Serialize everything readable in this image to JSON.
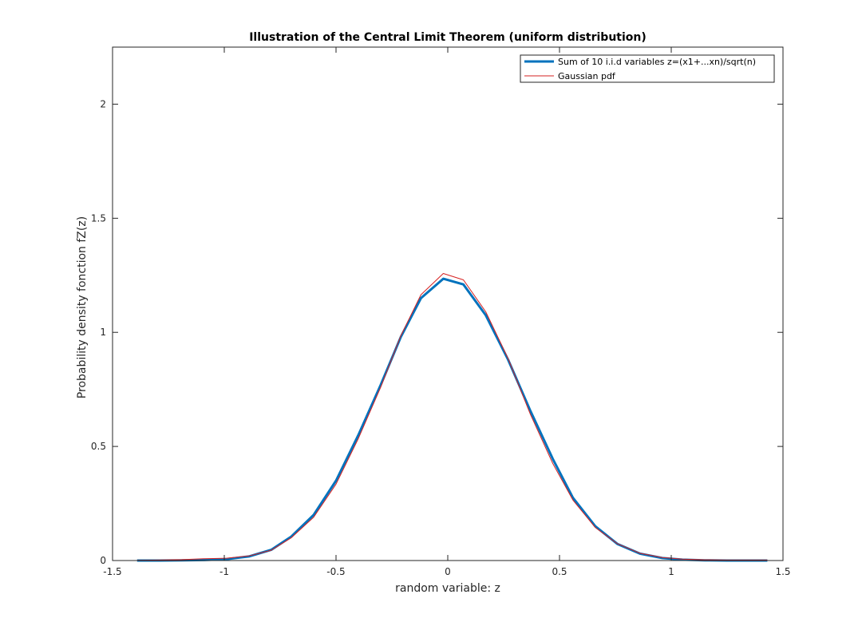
{
  "chart_data": {
    "type": "line",
    "title": "Illustration of the Central Limit Theorem (uniform distribution)",
    "xlabel": "random variable: z",
    "ylabel": "Probability density fonction fZ(z)",
    "xlim": [
      -1.5,
      1.5
    ],
    "ylim": [
      0,
      2.25
    ],
    "xticks": [
      -1.5,
      -1,
      -0.5,
      0,
      0.5,
      1,
      1.5
    ],
    "xtick_labels": [
      "-1.5",
      "-1",
      "-0.5",
      "0",
      "0.5",
      "1",
      "1.5"
    ],
    "yticks": [
      0,
      0.5,
      1,
      1.5,
      2
    ],
    "ytick_labels": [
      "0",
      "0.5",
      "1",
      "1.5",
      "2"
    ],
    "grid": false,
    "legend_position": "top-right",
    "x": [
      -1.39,
      -1.29,
      -1.19,
      -1.09,
      -0.99,
      -0.89,
      -0.79,
      -0.7,
      -0.6,
      -0.5,
      -0.4,
      -0.3,
      -0.21,
      -0.12,
      -0.02,
      0.07,
      0.17,
      0.27,
      0.37,
      0.47,
      0.56,
      0.66,
      0.76,
      0.86,
      0.96,
      1.05,
      1.15,
      1.25,
      1.35,
      1.43
    ],
    "series": [
      {
        "name": "Sum of 10 i.i.d variables z=(x1+...xn)/sqrt(n)",
        "color": "#0072bd",
        "values": [
          0.0,
          0.0,
          0.001,
          0.002,
          0.006,
          0.018,
          0.047,
          0.105,
          0.2,
          0.35,
          0.55,
          0.77,
          0.98,
          1.15,
          1.235,
          1.21,
          1.075,
          0.88,
          0.655,
          0.445,
          0.275,
          0.15,
          0.072,
          0.03,
          0.011,
          0.004,
          0.001,
          0.0,
          0.0,
          0.0
        ]
      },
      {
        "name": "Gaussian pdf",
        "color": "#d62020",
        "values": [
          0.001,
          0.002,
          0.004,
          0.008,
          0.01,
          0.02,
          0.045,
          0.1,
          0.19,
          0.335,
          0.535,
          0.76,
          0.985,
          1.165,
          1.258,
          1.23,
          1.09,
          0.885,
          0.64,
          0.425,
          0.265,
          0.145,
          0.073,
          0.032,
          0.013,
          0.006,
          0.003,
          0.002,
          0.002,
          0.002
        ]
      }
    ]
  }
}
